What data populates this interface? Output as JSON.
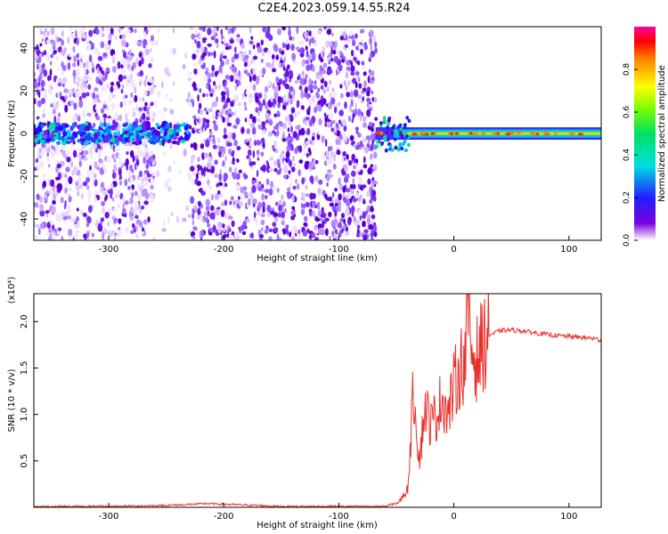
{
  "title": "C2E4.2023.059.14.55.R24",
  "chart_data": [
    {
      "type": "heatmap",
      "xlabel": "Height of straight line (km)",
      "ylabel": "Frequency (Hz)",
      "xlim": [
        -365,
        128
      ],
      "ylim": [
        -50,
        50
      ],
      "x_ticks": [
        -300,
        -200,
        -100,
        0,
        100
      ],
      "y_ticks": [
        -40,
        -20,
        0,
        20,
        40
      ],
      "grid": false,
      "colorbar": {
        "label": "Normalized spectral amplitude",
        "range": [
          0,
          1
        ],
        "ticks": [
          "0.0",
          "0.2",
          "0.4",
          "0.6",
          "0.8"
        ],
        "colormap": "rainbow (purple-blue-cyan-green-yellow-red-magenta)"
      },
      "features": {
        "noise_region_x": [
          -365,
          -68
        ],
        "sparse_gap_x": [
          -260,
          -228
        ],
        "signal_band_frequency_hz": 0,
        "signal_band_start_x": -68
      }
    },
    {
      "type": "line",
      "xlabel": "Height of straight line (km)",
      "ylabel": "SNR (10 * v/v)",
      "y_multiplier": "(x10⁴)",
      "xlim": [
        -365,
        128
      ],
      "ylim": [
        0,
        2.3
      ],
      "x_ticks": [
        -300,
        -200,
        -100,
        0,
        100
      ],
      "y_ticks": [
        0.5,
        1.0,
        1.5,
        2.0
      ],
      "color": "#e8302a",
      "series": [
        {
          "name": "",
          "x": [
            -365,
            -300,
            -250,
            -215,
            -150,
            -100,
            -60,
            -48,
            -40,
            -35,
            -30,
            -25,
            -20,
            -15,
            -10,
            -5,
            0,
            5,
            10,
            13,
            15,
            20,
            25,
            30,
            40,
            50,
            60,
            70,
            80,
            90,
            100,
            110,
            120,
            128
          ],
          "values": [
            0.01,
            0.01,
            0.02,
            0.04,
            0.01,
            0.01,
            0.01,
            0.05,
            0.2,
            1.3,
            0.5,
            1.1,
            0.9,
            1.0,
            1.2,
            1.0,
            1.3,
            1.5,
            1.6,
            2.25,
            1.7,
            1.6,
            1.75,
            1.85,
            1.9,
            1.91,
            1.9,
            1.88,
            1.86,
            1.85,
            1.84,
            1.83,
            1.82,
            1.8
          ]
        }
      ]
    }
  ]
}
